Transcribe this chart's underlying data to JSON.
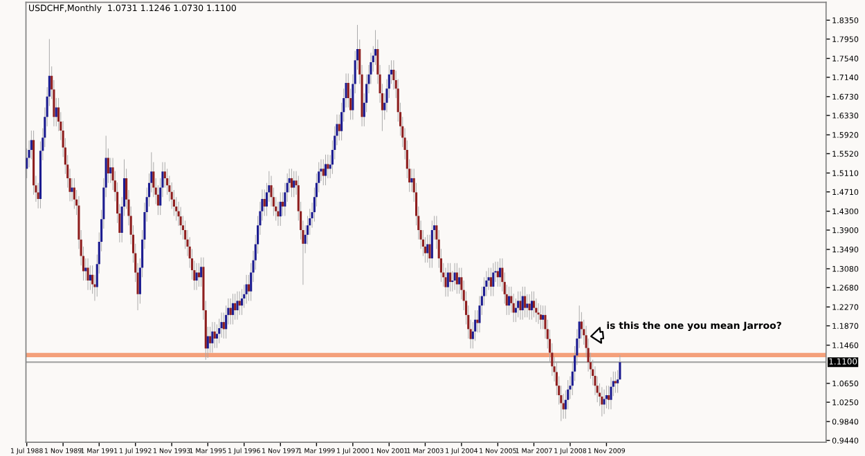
{
  "chart_data": {
    "type": "candlestick",
    "title": "USDCHF,Monthly  1.0731 1.1246 1.0730 1.1100",
    "x": [
      "1988-07-01",
      "1988-08-01",
      "1988-09-01",
      "1988-10-01",
      "1988-11-01",
      "1988-12-01",
      "1989-01-01",
      "1989-02-01",
      "1989-03-01",
      "1989-04-01",
      "1989-05-01",
      "1989-06-01",
      "1989-07-01",
      "1989-08-01",
      "1989-09-01",
      "1989-10-01",
      "1989-11-01",
      "1989-12-01",
      "1990-01-01",
      "1990-02-01",
      "1990-03-01",
      "1990-04-01",
      "1990-05-01",
      "1990-06-01",
      "1990-07-01",
      "1990-08-01",
      "1990-09-01",
      "1990-10-01",
      "1990-11-01",
      "1990-12-01",
      "1991-01-01",
      "1991-02-01",
      "1991-03-01",
      "1991-04-01",
      "1991-05-01",
      "1991-06-01",
      "1991-07-01",
      "1991-08-01",
      "1991-09-01",
      "1991-10-01",
      "1991-11-01",
      "1991-12-01",
      "1992-01-01",
      "1992-02-01",
      "1992-03-01",
      "1992-04-01",
      "1992-05-01",
      "1992-06-01",
      "1992-07-01",
      "1992-08-01",
      "1992-09-01",
      "1992-10-01",
      "1992-11-01",
      "1992-12-01",
      "1993-01-01",
      "1993-02-01",
      "1993-03-01",
      "1993-04-01",
      "1993-05-01",
      "1993-06-01",
      "1993-07-01",
      "1993-08-01",
      "1993-09-01",
      "1993-10-01",
      "1993-11-01",
      "1993-12-01",
      "1994-01-01",
      "1994-02-01",
      "1994-03-01",
      "1994-04-01",
      "1994-05-01",
      "1994-06-01",
      "1994-07-01",
      "1994-08-01",
      "1994-09-01",
      "1994-10-01",
      "1994-11-01",
      "1994-12-01",
      "1995-01-01",
      "1995-02-01",
      "1995-03-01",
      "1995-04-01",
      "1995-05-01",
      "1995-06-01",
      "1995-07-01",
      "1995-08-01",
      "1995-09-01",
      "1995-10-01",
      "1995-11-01",
      "1995-12-01",
      "1996-01-01",
      "1996-02-01",
      "1996-03-01",
      "1996-04-01",
      "1996-05-01",
      "1996-06-01",
      "1996-07-01",
      "1996-08-01",
      "1996-09-01",
      "1996-10-01",
      "1996-11-01",
      "1996-12-01",
      "1997-01-01",
      "1997-02-01",
      "1997-03-01",
      "1997-04-01",
      "1997-05-01",
      "1997-06-01",
      "1997-07-01",
      "1997-08-01",
      "1997-09-01",
      "1997-10-01",
      "1997-11-01",
      "1997-12-01",
      "1998-01-01",
      "1998-02-01",
      "1998-03-01",
      "1998-04-01",
      "1998-05-01",
      "1998-06-01",
      "1998-07-01",
      "1998-08-01",
      "1998-09-01",
      "1998-10-01",
      "1998-11-01",
      "1998-12-01",
      "1999-01-01",
      "1999-02-01",
      "1999-03-01",
      "1999-04-01",
      "1999-05-01",
      "1999-06-01",
      "1999-07-01",
      "1999-08-01",
      "1999-09-01",
      "1999-10-01",
      "1999-11-01",
      "1999-12-01",
      "2000-01-01",
      "2000-02-01",
      "2000-03-01",
      "2000-04-01",
      "2000-05-01",
      "2000-06-01",
      "2000-07-01",
      "2000-08-01",
      "2000-09-01",
      "2000-10-01",
      "2000-11-01",
      "2000-12-01",
      "2001-01-01",
      "2001-02-01",
      "2001-03-01",
      "2001-04-01",
      "2001-05-01",
      "2001-06-01",
      "2001-07-01",
      "2001-08-01",
      "2001-09-01",
      "2001-10-01",
      "2001-11-01",
      "2001-12-01",
      "2002-01-01",
      "2002-02-01",
      "2002-03-01",
      "2002-04-01",
      "2002-05-01",
      "2002-06-01",
      "2002-07-01",
      "2002-08-01",
      "2002-09-01",
      "2002-10-01",
      "2002-11-01",
      "2002-12-01",
      "2003-01-01",
      "2003-02-01",
      "2003-03-01",
      "2003-04-01",
      "2003-05-01",
      "2003-06-01",
      "2003-07-01",
      "2003-08-01",
      "2003-09-01",
      "2003-10-01",
      "2003-11-01",
      "2003-12-01",
      "2004-01-01",
      "2004-02-01",
      "2004-03-01",
      "2004-04-01",
      "2004-05-01",
      "2004-06-01",
      "2004-07-01",
      "2004-08-01",
      "2004-09-01",
      "2004-10-01",
      "2004-11-01",
      "2004-12-01",
      "2005-01-01",
      "2005-02-01",
      "2005-03-01",
      "2005-04-01",
      "2005-05-01",
      "2005-06-01",
      "2005-07-01",
      "2005-08-01",
      "2005-09-01",
      "2005-10-01",
      "2005-11-01",
      "2005-12-01",
      "2006-01-01",
      "2006-02-01",
      "2006-03-01",
      "2006-04-01",
      "2006-05-01",
      "2006-06-01",
      "2006-07-01",
      "2006-08-01",
      "2006-09-01",
      "2006-10-01",
      "2006-11-01",
      "2006-12-01",
      "2007-01-01",
      "2007-02-01",
      "2007-03-01",
      "2007-04-01",
      "2007-05-01",
      "2007-06-01",
      "2007-07-01",
      "2007-08-01",
      "2007-09-01",
      "2007-10-01",
      "2007-11-01",
      "2007-12-01",
      "2008-01-01",
      "2008-02-01",
      "2008-03-01",
      "2008-04-01",
      "2008-05-01",
      "2008-06-01",
      "2008-07-01",
      "2008-08-01",
      "2008-09-01",
      "2008-10-01",
      "2008-11-01",
      "2008-12-01",
      "2009-01-01",
      "2009-02-01",
      "2009-03-01",
      "2009-04-01",
      "2009-05-01",
      "2009-06-01",
      "2009-07-01",
      "2009-08-01",
      "2009-09-01",
      "2009-10-01",
      "2009-11-01",
      "2009-12-01",
      "2010-01-01",
      "2010-02-01",
      "2010-03-01",
      "2010-04-01",
      "2010-05-01"
    ],
    "ohlc": [
      [
        1.52,
        1.563,
        1.5,
        1.543
      ],
      [
        1.543,
        1.58,
        1.523,
        1.56
      ],
      [
        1.56,
        1.601,
        1.54,
        1.581
      ],
      [
        1.581,
        1.601,
        1.465,
        1.485
      ],
      [
        1.485,
        1.505,
        1.45,
        1.47
      ],
      [
        1.47,
        1.49,
        1.436,
        1.456
      ],
      [
        1.456,
        1.578,
        1.436,
        1.558
      ],
      [
        1.558,
        1.606,
        1.538,
        1.586
      ],
      [
        1.586,
        1.65,
        1.566,
        1.63
      ],
      [
        1.63,
        1.693,
        1.61,
        1.673
      ],
      [
        1.673,
        1.795,
        1.653,
        1.717
      ],
      [
        1.717,
        1.737,
        1.668,
        1.688
      ],
      [
        1.688,
        1.708,
        1.61,
        1.63
      ],
      [
        1.63,
        1.67,
        1.61,
        1.65
      ],
      [
        1.65,
        1.67,
        1.6,
        1.62
      ],
      [
        1.62,
        1.64,
        1.581,
        1.601
      ],
      [
        1.601,
        1.621,
        1.545,
        1.565
      ],
      [
        1.565,
        1.585,
        1.509,
        1.529
      ],
      [
        1.529,
        1.549,
        1.48,
        1.5
      ],
      [
        1.5,
        1.52,
        1.451,
        1.471
      ],
      [
        1.471,
        1.5,
        1.451,
        1.48
      ],
      [
        1.48,
        1.5,
        1.435,
        1.455
      ],
      [
        1.455,
        1.475,
        1.422,
        1.442
      ],
      [
        1.442,
        1.462,
        1.35,
        1.37
      ],
      [
        1.37,
        1.39,
        1.315,
        1.335
      ],
      [
        1.335,
        1.355,
        1.283,
        1.303
      ],
      [
        1.303,
        1.33,
        1.283,
        1.31
      ],
      [
        1.31,
        1.33,
        1.263,
        1.283
      ],
      [
        1.283,
        1.315,
        1.263,
        1.295
      ],
      [
        1.295,
        1.315,
        1.255,
        1.275
      ],
      [
        1.275,
        1.295,
        1.24,
        1.269
      ],
      [
        1.269,
        1.338,
        1.249,
        1.318
      ],
      [
        1.318,
        1.385,
        1.298,
        1.365
      ],
      [
        1.365,
        1.433,
        1.345,
        1.413
      ],
      [
        1.413,
        1.5,
        1.393,
        1.48
      ],
      [
        1.48,
        1.59,
        1.46,
        1.543
      ],
      [
        1.543,
        1.563,
        1.49,
        1.51
      ],
      [
        1.51,
        1.543,
        1.49,
        1.523
      ],
      [
        1.523,
        1.543,
        1.475,
        1.495
      ],
      [
        1.495,
        1.515,
        1.451,
        1.471
      ],
      [
        1.471,
        1.491,
        1.405,
        1.425
      ],
      [
        1.425,
        1.445,
        1.364,
        1.384
      ],
      [
        1.384,
        1.46,
        1.364,
        1.44
      ],
      [
        1.44,
        1.54,
        1.42,
        1.5
      ],
      [
        1.5,
        1.52,
        1.435,
        1.455
      ],
      [
        1.455,
        1.475,
        1.4,
        1.42
      ],
      [
        1.42,
        1.44,
        1.36,
        1.38
      ],
      [
        1.38,
        1.4,
        1.321,
        1.341
      ],
      [
        1.341,
        1.361,
        1.28,
        1.3
      ],
      [
        1.3,
        1.32,
        1.22,
        1.254
      ],
      [
        1.254,
        1.33,
        1.234,
        1.31
      ],
      [
        1.31,
        1.39,
        1.29,
        1.37
      ],
      [
        1.37,
        1.448,
        1.35,
        1.428
      ],
      [
        1.428,
        1.48,
        1.408,
        1.46
      ],
      [
        1.46,
        1.51,
        1.44,
        1.49
      ],
      [
        1.49,
        1.555,
        1.47,
        1.514
      ],
      [
        1.514,
        1.534,
        1.46,
        1.48
      ],
      [
        1.48,
        1.5,
        1.445,
        1.465
      ],
      [
        1.465,
        1.485,
        1.422,
        1.442
      ],
      [
        1.442,
        1.5,
        1.422,
        1.48
      ],
      [
        1.48,
        1.534,
        1.46,
        1.514
      ],
      [
        1.514,
        1.534,
        1.48,
        1.5
      ],
      [
        1.5,
        1.52,
        1.465,
        1.485
      ],
      [
        1.485,
        1.505,
        1.451,
        1.471
      ],
      [
        1.471,
        1.491,
        1.435,
        1.455
      ],
      [
        1.455,
        1.475,
        1.42,
        1.44
      ],
      [
        1.44,
        1.46,
        1.41,
        1.43
      ],
      [
        1.43,
        1.45,
        1.399,
        1.419
      ],
      [
        1.419,
        1.439,
        1.38,
        1.4
      ],
      [
        1.4,
        1.42,
        1.37,
        1.39
      ],
      [
        1.39,
        1.41,
        1.35,
        1.37
      ],
      [
        1.37,
        1.39,
        1.335,
        1.355
      ],
      [
        1.355,
        1.375,
        1.31,
        1.33
      ],
      [
        1.33,
        1.35,
        1.285,
        1.305
      ],
      [
        1.305,
        1.325,
        1.263,
        1.283
      ],
      [
        1.283,
        1.32,
        1.263,
        1.3
      ],
      [
        1.3,
        1.32,
        1.27,
        1.29
      ],
      [
        1.29,
        1.332,
        1.27,
        1.312
      ],
      [
        1.312,
        1.332,
        1.2,
        1.22
      ],
      [
        1.22,
        1.24,
        1.115,
        1.139
      ],
      [
        1.139,
        1.185,
        1.119,
        1.165
      ],
      [
        1.165,
        1.185,
        1.13,
        1.15
      ],
      [
        1.15,
        1.195,
        1.13,
        1.175
      ],
      [
        1.175,
        1.195,
        1.14,
        1.16
      ],
      [
        1.16,
        1.19,
        1.14,
        1.17
      ],
      [
        1.17,
        1.202,
        1.15,
        1.182
      ],
      [
        1.182,
        1.215,
        1.162,
        1.195
      ],
      [
        1.195,
        1.215,
        1.16,
        1.18
      ],
      [
        1.18,
        1.23,
        1.16,
        1.21
      ],
      [
        1.21,
        1.245,
        1.19,
        1.225
      ],
      [
        1.225,
        1.245,
        1.19,
        1.21
      ],
      [
        1.21,
        1.255,
        1.19,
        1.235
      ],
      [
        1.235,
        1.255,
        1.2,
        1.22
      ],
      [
        1.22,
        1.26,
        1.2,
        1.24
      ],
      [
        1.24,
        1.26,
        1.21,
        1.23
      ],
      [
        1.23,
        1.265,
        1.21,
        1.245
      ],
      [
        1.245,
        1.274,
        1.225,
        1.254
      ],
      [
        1.254,
        1.295,
        1.234,
        1.275
      ],
      [
        1.275,
        1.295,
        1.24,
        1.26
      ],
      [
        1.26,
        1.32,
        1.24,
        1.3
      ],
      [
        1.3,
        1.346,
        1.28,
        1.326
      ],
      [
        1.326,
        1.38,
        1.306,
        1.36
      ],
      [
        1.36,
        1.42,
        1.34,
        1.4
      ],
      [
        1.4,
        1.45,
        1.38,
        1.43
      ],
      [
        1.43,
        1.476,
        1.41,
        1.456
      ],
      [
        1.456,
        1.476,
        1.42,
        1.44
      ],
      [
        1.44,
        1.49,
        1.42,
        1.47
      ],
      [
        1.47,
        1.515,
        1.45,
        1.485
      ],
      [
        1.485,
        1.505,
        1.44,
        1.46
      ],
      [
        1.46,
        1.48,
        1.42,
        1.44
      ],
      [
        1.44,
        1.46,
        1.41,
        1.43
      ],
      [
        1.43,
        1.45,
        1.399,
        1.419
      ],
      [
        1.419,
        1.47,
        1.399,
        1.45
      ],
      [
        1.45,
        1.47,
        1.42,
        1.44
      ],
      [
        1.44,
        1.49,
        1.42,
        1.47
      ],
      [
        1.47,
        1.51,
        1.45,
        1.49
      ],
      [
        1.49,
        1.52,
        1.47,
        1.5
      ],
      [
        1.5,
        1.52,
        1.46,
        1.48
      ],
      [
        1.48,
        1.515,
        1.46,
        1.495
      ],
      [
        1.495,
        1.515,
        1.465,
        1.485
      ],
      [
        1.485,
        1.505,
        1.41,
        1.43
      ],
      [
        1.43,
        1.45,
        1.37,
        1.39
      ],
      [
        1.39,
        1.41,
        1.274,
        1.361
      ],
      [
        1.361,
        1.4,
        1.341,
        1.38
      ],
      [
        1.38,
        1.42,
        1.36,
        1.4
      ],
      [
        1.4,
        1.435,
        1.38,
        1.415
      ],
      [
        1.415,
        1.448,
        1.395,
        1.428
      ],
      [
        1.428,
        1.48,
        1.408,
        1.46
      ],
      [
        1.46,
        1.51,
        1.44,
        1.49
      ],
      [
        1.49,
        1.534,
        1.47,
        1.514
      ],
      [
        1.514,
        1.54,
        1.494,
        1.52
      ],
      [
        1.52,
        1.54,
        1.485,
        1.505
      ],
      [
        1.505,
        1.55,
        1.485,
        1.53
      ],
      [
        1.53,
        1.55,
        1.5,
        1.52
      ],
      [
        1.52,
        1.549,
        1.5,
        1.529
      ],
      [
        1.529,
        1.58,
        1.509,
        1.56
      ],
      [
        1.56,
        1.61,
        1.54,
        1.59
      ],
      [
        1.59,
        1.635,
        1.57,
        1.615
      ],
      [
        1.615,
        1.635,
        1.58,
        1.6
      ],
      [
        1.6,
        1.66,
        1.58,
        1.64
      ],
      [
        1.64,
        1.69,
        1.62,
        1.67
      ],
      [
        1.67,
        1.722,
        1.65,
        1.702
      ],
      [
        1.702,
        1.722,
        1.65,
        1.67
      ],
      [
        1.67,
        1.69,
        1.624,
        1.644
      ],
      [
        1.644,
        1.72,
        1.624,
        1.7
      ],
      [
        1.7,
        1.77,
        1.68,
        1.75
      ],
      [
        1.75,
        1.825,
        1.73,
        1.774
      ],
      [
        1.774,
        1.794,
        1.7,
        1.72
      ],
      [
        1.72,
        1.74,
        1.61,
        1.63
      ],
      [
        1.63,
        1.68,
        1.61,
        1.66
      ],
      [
        1.66,
        1.72,
        1.64,
        1.7
      ],
      [
        1.7,
        1.74,
        1.68,
        1.72
      ],
      [
        1.72,
        1.766,
        1.7,
        1.746
      ],
      [
        1.746,
        1.78,
        1.726,
        1.76
      ],
      [
        1.76,
        1.814,
        1.74,
        1.774
      ],
      [
        1.774,
        1.794,
        1.7,
        1.72
      ],
      [
        1.72,
        1.74,
        1.66,
        1.68
      ],
      [
        1.68,
        1.7,
        1.6,
        1.644
      ],
      [
        1.644,
        1.68,
        1.624,
        1.66
      ],
      [
        1.66,
        1.71,
        1.64,
        1.69
      ],
      [
        1.69,
        1.74,
        1.67,
        1.72
      ],
      [
        1.72,
        1.75,
        1.7,
        1.73
      ],
      [
        1.73,
        1.75,
        1.688,
        1.708
      ],
      [
        1.708,
        1.728,
        1.67,
        1.69
      ],
      [
        1.69,
        1.71,
        1.62,
        1.64
      ],
      [
        1.64,
        1.66,
        1.59,
        1.61
      ],
      [
        1.61,
        1.63,
        1.566,
        1.586
      ],
      [
        1.586,
        1.606,
        1.54,
        1.56
      ],
      [
        1.56,
        1.58,
        1.5,
        1.52
      ],
      [
        1.52,
        1.54,
        1.471,
        1.491
      ],
      [
        1.491,
        1.52,
        1.471,
        1.5
      ],
      [
        1.5,
        1.52,
        1.45,
        1.47
      ],
      [
        1.47,
        1.49,
        1.4,
        1.42
      ],
      [
        1.42,
        1.44,
        1.37,
        1.39
      ],
      [
        1.39,
        1.41,
        1.35,
        1.37
      ],
      [
        1.37,
        1.39,
        1.335,
        1.355
      ],
      [
        1.355,
        1.375,
        1.321,
        1.341
      ],
      [
        1.341,
        1.38,
        1.321,
        1.36
      ],
      [
        1.36,
        1.38,
        1.31,
        1.33
      ],
      [
        1.33,
        1.41,
        1.31,
        1.39
      ],
      [
        1.39,
        1.42,
        1.37,
        1.4
      ],
      [
        1.4,
        1.42,
        1.35,
        1.37
      ],
      [
        1.37,
        1.39,
        1.31,
        1.33
      ],
      [
        1.33,
        1.35,
        1.28,
        1.3
      ],
      [
        1.3,
        1.32,
        1.27,
        1.29
      ],
      [
        1.29,
        1.31,
        1.249,
        1.269
      ],
      [
        1.269,
        1.32,
        1.249,
        1.3
      ],
      [
        1.3,
        1.32,
        1.26,
        1.28
      ],
      [
        1.28,
        1.303,
        1.26,
        1.283
      ],
      [
        1.283,
        1.32,
        1.263,
        1.3
      ],
      [
        1.3,
        1.32,
        1.255,
        1.275
      ],
      [
        1.275,
        1.31,
        1.255,
        1.29
      ],
      [
        1.29,
        1.31,
        1.243,
        1.263
      ],
      [
        1.263,
        1.283,
        1.22,
        1.24
      ],
      [
        1.24,
        1.26,
        1.19,
        1.21
      ],
      [
        1.21,
        1.23,
        1.16,
        1.18
      ],
      [
        1.18,
        1.2,
        1.139,
        1.159
      ],
      [
        1.159,
        1.195,
        1.139,
        1.175
      ],
      [
        1.175,
        1.22,
        1.155,
        1.2
      ],
      [
        1.2,
        1.22,
        1.173,
        1.193
      ],
      [
        1.193,
        1.25,
        1.173,
        1.23
      ],
      [
        1.23,
        1.27,
        1.21,
        1.25
      ],
      [
        1.25,
        1.29,
        1.23,
        1.27
      ],
      [
        1.27,
        1.303,
        1.25,
        1.283
      ],
      [
        1.283,
        1.31,
        1.263,
        1.29
      ],
      [
        1.29,
        1.31,
        1.25,
        1.27
      ],
      [
        1.27,
        1.32,
        1.25,
        1.3
      ],
      [
        1.3,
        1.323,
        1.28,
        1.303
      ],
      [
        1.303,
        1.323,
        1.27,
        1.29
      ],
      [
        1.29,
        1.33,
        1.27,
        1.31
      ],
      [
        1.31,
        1.33,
        1.26,
        1.28
      ],
      [
        1.28,
        1.3,
        1.234,
        1.254
      ],
      [
        1.254,
        1.274,
        1.21,
        1.23
      ],
      [
        1.23,
        1.27,
        1.21,
        1.25
      ],
      [
        1.25,
        1.27,
        1.215,
        1.235
      ],
      [
        1.235,
        1.255,
        1.195,
        1.215
      ],
      [
        1.215,
        1.245,
        1.195,
        1.225
      ],
      [
        1.225,
        1.26,
        1.205,
        1.24
      ],
      [
        1.24,
        1.26,
        1.2,
        1.22
      ],
      [
        1.22,
        1.27,
        1.2,
        1.25
      ],
      [
        1.25,
        1.27,
        1.205,
        1.225
      ],
      [
        1.225,
        1.254,
        1.205,
        1.234
      ],
      [
        1.234,
        1.254,
        1.2,
        1.22
      ],
      [
        1.22,
        1.26,
        1.2,
        1.24
      ],
      [
        1.24,
        1.26,
        1.205,
        1.225
      ],
      [
        1.225,
        1.245,
        1.195,
        1.215
      ],
      [
        1.215,
        1.235,
        1.191,
        1.211
      ],
      [
        1.211,
        1.231,
        1.18,
        1.2
      ],
      [
        1.2,
        1.23,
        1.18,
        1.21
      ],
      [
        1.21,
        1.23,
        1.16,
        1.18
      ],
      [
        1.18,
        1.2,
        1.139,
        1.159
      ],
      [
        1.159,
        1.179,
        1.11,
        1.13
      ],
      [
        1.13,
        1.15,
        1.081,
        1.101
      ],
      [
        1.101,
        1.121,
        1.069,
        1.089
      ],
      [
        1.089,
        1.109,
        1.04,
        1.06
      ],
      [
        1.06,
        1.08,
        1.02,
        1.04
      ],
      [
        1.04,
        1.06,
        0.985,
        1.023
      ],
      [
        1.023,
        1.043,
        0.99,
        1.01
      ],
      [
        1.01,
        1.05,
        0.99,
        1.03
      ],
      [
        1.03,
        1.072,
        1.01,
        1.052
      ],
      [
        1.052,
        1.08,
        1.032,
        1.06
      ],
      [
        1.06,
        1.11,
        1.04,
        1.09
      ],
      [
        1.09,
        1.144,
        1.07,
        1.124
      ],
      [
        1.124,
        1.18,
        1.104,
        1.16
      ],
      [
        1.16,
        1.23,
        1.14,
        1.196
      ],
      [
        1.196,
        1.216,
        1.16,
        1.18
      ],
      [
        1.18,
        1.2,
        1.147,
        1.167
      ],
      [
        1.167,
        1.187,
        1.12,
        1.14
      ],
      [
        1.14,
        1.16,
        1.09,
        1.11
      ],
      [
        1.11,
        1.13,
        1.075,
        1.095
      ],
      [
        1.095,
        1.115,
        1.061,
        1.081
      ],
      [
        1.081,
        1.101,
        1.04,
        1.06
      ],
      [
        1.06,
        1.08,
        1.025,
        1.045
      ],
      [
        1.045,
        1.065,
        1.017,
        1.037
      ],
      [
        1.037,
        1.057,
        0.995,
        1.02
      ],
      [
        1.02,
        1.052,
        1.0,
        1.032
      ],
      [
        1.032,
        1.06,
        1.012,
        1.04
      ],
      [
        1.04,
        1.06,
        1.01,
        1.03
      ],
      [
        1.03,
        1.078,
        1.01,
        1.058
      ],
      [
        1.058,
        1.09,
        1.038,
        1.07
      ],
      [
        1.07,
        1.09,
        1.045,
        1.065
      ],
      [
        1.065,
        1.093,
        1.045,
        1.0731
      ],
      [
        1.0731,
        1.1246,
        1.073,
        1.11
      ]
    ],
    "xlim": [
      "1988-06-20",
      "2017-12-01"
    ],
    "xticks": [
      {
        "value": "1988-07",
        "label": "1 Jul 1988"
      },
      {
        "value": "1989-11",
        "label": "1 Nov 1989"
      },
      {
        "value": "1991-03",
        "label": "1 Mar 1991"
      },
      {
        "value": "1992-07",
        "label": "1 Jul 1992"
      },
      {
        "value": "1993-11",
        "label": "1 Nov 1993"
      },
      {
        "value": "1995-03",
        "label": "1 Mar 1995"
      },
      {
        "value": "1996-07",
        "label": "1 Jul 1996"
      },
      {
        "value": "1997-11",
        "label": "1 Nov 1997"
      },
      {
        "value": "1999-03",
        "label": "1 Mar 1999"
      },
      {
        "value": "2000-07",
        "label": "1 Jul 2000"
      },
      {
        "value": "2001-11",
        "label": "1 Nov 2001"
      },
      {
        "value": "2003-03",
        "label": "1 Mar 2003"
      },
      {
        "value": "2004-07",
        "label": "1 Jul 2004"
      },
      {
        "value": "2005-11",
        "label": "1 Nov 2005"
      },
      {
        "value": "2007-03",
        "label": "1 Mar 2007"
      },
      {
        "value": "2008-07",
        "label": "1 Jul 2008"
      },
      {
        "value": "2009-11",
        "label": "1 Nov 2009"
      }
    ],
    "ylim": [
      0.94,
      1.873
    ],
    "yticks": [
      {
        "value": 1.835,
        "label": "1.8350"
      },
      {
        "value": 1.795,
        "label": "1.7950"
      },
      {
        "value": 1.754,
        "label": "1.7540"
      },
      {
        "value": 1.714,
        "label": "1.7140"
      },
      {
        "value": 1.673,
        "label": "1.6730"
      },
      {
        "value": 1.633,
        "label": "1.6330"
      },
      {
        "value": 1.592,
        "label": "1.5920"
      },
      {
        "value": 1.552,
        "label": "1.5520"
      },
      {
        "value": 1.511,
        "label": "1.5110"
      },
      {
        "value": 1.471,
        "label": "1.4710"
      },
      {
        "value": 1.43,
        "label": "1.4300"
      },
      {
        "value": 1.39,
        "label": "1.3900"
      },
      {
        "value": 1.349,
        "label": "1.3490"
      },
      {
        "value": 1.308,
        "label": "1.3080"
      },
      {
        "value": 1.268,
        "label": "1.2680"
      },
      {
        "value": 1.227,
        "label": "1.2270"
      },
      {
        "value": 1.187,
        "label": "1.1870"
      },
      {
        "value": 1.146,
        "label": "1.1460"
      },
      {
        "value": 1.065,
        "label": "1.0650"
      },
      {
        "value": 1.025,
        "label": "1.0250"
      },
      {
        "value": 0.984,
        "label": "0.9840"
      },
      {
        "value": 0.944,
        "label": "0.9440"
      }
    ],
    "ref_lines": [
      {
        "axis": "y",
        "value": 1.125,
        "color": "#f4a07a",
        "line_style": "solid"
      },
      {
        "axis": "y",
        "value": 1.11,
        "label": "1.1100",
        "color": "#a8a8a8",
        "line_style": "solid"
      }
    ],
    "annotations": [
      {
        "text": "is this the one you mean Jarroo?",
        "x": "2009-02",
        "y": 1.164
      }
    ],
    "grid": false,
    "legend": false
  }
}
